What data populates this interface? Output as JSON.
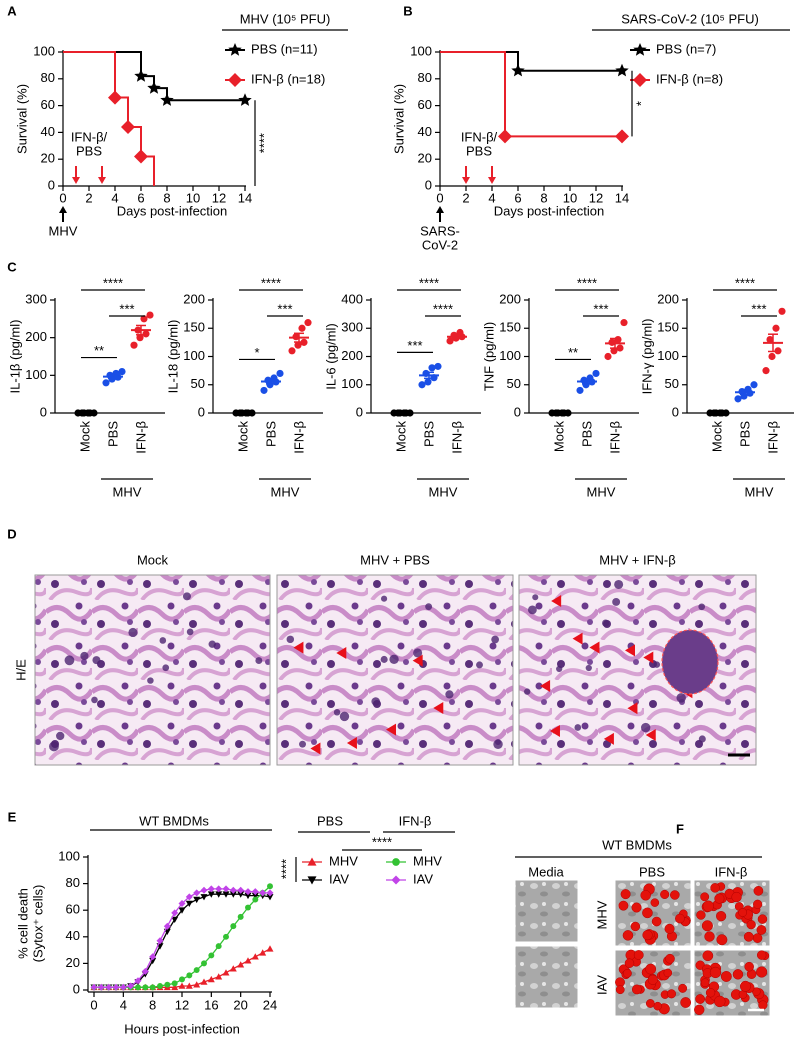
{
  "figure": {
    "letters": [
      "A",
      "B",
      "C",
      "D",
      "E",
      "F"
    ],
    "histology": {
      "titles": [
        "Mock",
        "MHV + PBS",
        "MHV + IFN-β"
      ],
      "row_label": "H/E"
    },
    "images": {
      "title": "WT BMDMs",
      "columns": [
        "Media",
        "PBS",
        "IFN-β"
      ],
      "rows": [
        "MHV",
        "IAV"
      ]
    }
  },
  "chart_data": [
    {
      "type": "survival",
      "legend_title": "MHV (10⁵ PFU)",
      "xlabel": "Days post-infection",
      "ylabel": "Survival (%)",
      "xlim": [
        0,
        14
      ],
      "ylim": [
        0,
        100
      ],
      "xticks": [
        0,
        2,
        4,
        6,
        8,
        10,
        12,
        14
      ],
      "yticks": [
        0,
        20,
        40,
        60,
        80,
        100
      ],
      "series": [
        {
          "name": "PBS (n=11)",
          "color": "#000000",
          "marker": "star",
          "x": [
            0,
            6,
            7,
            8,
            14
          ],
          "values": [
            100,
            82,
            73,
            64,
            64
          ]
        },
        {
          "name": "IFN-β (n=18)",
          "color": "#e8202a",
          "marker": "diamond",
          "x": [
            0,
            4,
            5,
            6,
            7
          ],
          "values": [
            100,
            66,
            44,
            22,
            0
          ]
        }
      ],
      "treatment_label": [
        "IFN-β/",
        "PBS"
      ],
      "treatment_days": [
        1,
        3
      ],
      "infection_label": [
        "MHV"
      ],
      "infection_day": 0,
      "significance": "****"
    },
    {
      "type": "survival",
      "legend_title": "SARS-CoV-2 (10⁵ PFU)",
      "xlabel": "Days post-infection",
      "ylabel": "Survival (%)",
      "xlim": [
        0,
        14
      ],
      "ylim": [
        0,
        100
      ],
      "xticks": [
        0,
        2,
        4,
        6,
        8,
        10,
        12,
        14
      ],
      "yticks": [
        0,
        20,
        40,
        60,
        80,
        100
      ],
      "series": [
        {
          "name": "PBS (n=7)",
          "color": "#000000",
          "marker": "star",
          "x": [
            0,
            6,
            14
          ],
          "values": [
            100,
            86,
            86
          ]
        },
        {
          "name": "IFN-β (n=8)",
          "color": "#e8202a",
          "marker": "diamond",
          "x": [
            0,
            5,
            14
          ],
          "values": [
            100,
            37,
            37
          ]
        }
      ],
      "treatment_label": [
        "IFN-β/",
        "PBS"
      ],
      "treatment_days": [
        2,
        4
      ],
      "infection_label": [
        "SARS-",
        "CoV-2"
      ],
      "infection_day": 0,
      "significance": "*"
    },
    {
      "type": "dot",
      "ylabel": "IL-1β (pg/ml)",
      "ylim": [
        0,
        300
      ],
      "yticks": [
        0,
        100,
        200,
        300
      ],
      "categories": [
        "Mock",
        "PBS",
        "IFN-β"
      ],
      "colors": [
        "#000000",
        "#1a4fe6",
        "#e8202a"
      ],
      "group_label": "MHV",
      "values": [
        [
          0,
          0,
          0,
          0,
          0,
          0
        ],
        [
          80,
          90,
          95,
          100,
          105,
          110
        ],
        [
          180,
          200,
          210,
          220,
          250,
          260
        ]
      ],
      "sig_mock_pbs": "**",
      "sig_pbs_ifn": "***",
      "sig_mock_ifn": "****"
    },
    {
      "type": "dot",
      "ylabel": "IL-18 (pg/ml)",
      "ylim": [
        0,
        200
      ],
      "yticks": [
        0,
        50,
        100,
        150,
        200
      ],
      "categories": [
        "Mock",
        "PBS",
        "IFN-β"
      ],
      "colors": [
        "#000000",
        "#1a4fe6",
        "#e8202a"
      ],
      "group_label": "MHV",
      "values": [
        [
          0,
          0,
          0,
          0,
          0,
          0
        ],
        [
          40,
          50,
          55,
          58,
          62,
          70
        ],
        [
          110,
          120,
          125,
          135,
          150,
          160
        ]
      ],
      "sig_mock_pbs": "*",
      "sig_pbs_ifn": "***",
      "sig_mock_ifn": "****"
    },
    {
      "type": "dot",
      "ylabel": "IL-6 (pg/ml)",
      "ylim": [
        0,
        400
      ],
      "yticks": [
        0,
        100,
        200,
        300,
        400
      ],
      "categories": [
        "Mock",
        "PBS",
        "IFN-β"
      ],
      "colors": [
        "#000000",
        "#1a4fe6",
        "#e8202a"
      ],
      "group_label": "MHV",
      "values": [
        [
          0,
          0,
          0,
          0,
          0,
          0
        ],
        [
          100,
          110,
          125,
          140,
          160,
          165
        ],
        [
          255,
          265,
          270,
          275,
          285
        ]
      ],
      "sig_mock_pbs": "***",
      "sig_pbs_ifn": "****",
      "sig_mock_ifn": "****"
    },
    {
      "type": "dot",
      "ylabel": "TNF (pg/ml)",
      "ylim": [
        0,
        200
      ],
      "yticks": [
        0,
        50,
        100,
        150,
        200
      ],
      "categories": [
        "Mock",
        "PBS",
        "IFN-β"
      ],
      "colors": [
        "#000000",
        "#1a4fe6",
        "#e8202a"
      ],
      "group_label": "MHV",
      "values": [
        [
          0,
          0,
          0,
          0,
          0,
          0
        ],
        [
          40,
          50,
          55,
          58,
          62,
          70
        ],
        [
          100,
          110,
          115,
          125,
          130,
          160
        ]
      ],
      "sig_mock_pbs": "**",
      "sig_pbs_ifn": "***",
      "sig_mock_ifn": "****"
    },
    {
      "type": "dot",
      "ylabel": "IFN-γ (pg/ml)",
      "ylim": [
        0,
        200
      ],
      "yticks": [
        0,
        50,
        100,
        150,
        200
      ],
      "categories": [
        "Mock",
        "PBS",
        "IFN-β"
      ],
      "colors": [
        "#000000",
        "#1a4fe6",
        "#e8202a"
      ],
      "group_label": "MHV",
      "values": [
        [
          0,
          0,
          0,
          0,
          0,
          0
        ],
        [
          25,
          30,
          35,
          38,
          42,
          50
        ],
        [
          75,
          100,
          110,
          130,
          150,
          180
        ]
      ],
      "sig_pbs_ifn": "***",
      "sig_mock_ifn": "****"
    },
    {
      "type": "line",
      "title": "WT BMDMs",
      "xlabel": "Hours post-infection",
      "ylabel": [
        "% cell death",
        "(Sytox⁺ cells)"
      ],
      "xlim": [
        0,
        24
      ],
      "ylim": [
        0,
        100
      ],
      "xticks": [
        0,
        4,
        8,
        12,
        16,
        20,
        24
      ],
      "yticks": [
        0,
        20,
        40,
        60,
        80,
        100
      ],
      "x": [
        0,
        1,
        2,
        3,
        4,
        5,
        6,
        7,
        8,
        9,
        10,
        11,
        12,
        13,
        14,
        15,
        16,
        17,
        18,
        19,
        20,
        21,
        22,
        23,
        24
      ],
      "legend_groups": [
        "PBS",
        "IFN-β"
      ],
      "series": [
        {
          "name": "MHV",
          "color": "#e8202a",
          "marker": "triangle",
          "values": [
            2,
            2,
            2,
            2,
            2,
            2,
            2,
            2,
            2,
            2,
            2,
            2,
            3,
            3,
            4,
            6,
            8,
            10,
            13,
            16,
            19,
            22,
            25,
            28,
            31
          ]
        },
        {
          "name": "IAV",
          "color": "#000000",
          "marker": "triangle-down",
          "values": [
            2,
            2,
            2,
            2,
            2,
            3,
            6,
            12,
            22,
            33,
            44,
            53,
            60,
            65,
            68,
            70,
            72,
            72,
            72,
            72,
            72,
            71,
            71,
            71,
            70
          ]
        },
        {
          "name": "MHV",
          "color": "#33c233",
          "marker": "circle",
          "values": [
            2,
            2,
            2,
            2,
            2,
            2,
            2,
            2,
            2,
            3,
            4,
            5,
            8,
            11,
            15,
            20,
            26,
            33,
            40,
            48,
            55,
            62,
            68,
            73,
            78
          ]
        },
        {
          "name": "IAV",
          "color": "#c144e8",
          "marker": "diamond",
          "values": [
            2,
            2,
            2,
            2,
            2,
            3,
            7,
            14,
            25,
            37,
            48,
            58,
            65,
            70,
            73,
            75,
            76,
            76,
            76,
            75,
            75,
            74,
            74,
            73,
            73
          ]
        }
      ],
      "significance": [
        "****",
        "****"
      ]
    }
  ]
}
